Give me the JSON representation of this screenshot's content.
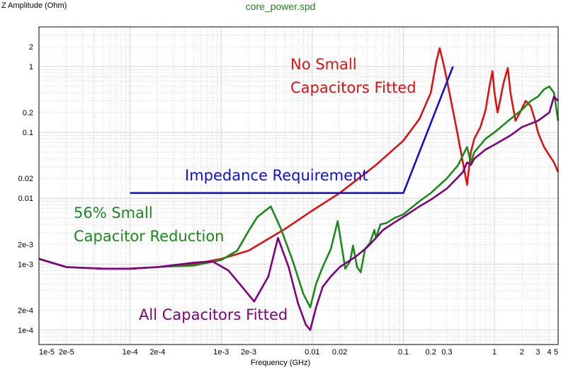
{
  "chart_data": {
    "type": "line",
    "title": "core_power.spd",
    "ylabel": "Z Amplitude (Ohm)",
    "xlabel": "Frequency (GHz)",
    "xscale": "log",
    "yscale": "log",
    "xlim": [
      1e-05,
      5
    ],
    "ylim": [
      6e-05,
      4
    ],
    "grid": true,
    "x_ticks": [
      "1e-5",
      "2e-5",
      "1e-4",
      "2e-4",
      "1e-3",
      "2e-3",
      "0.01",
      "0.02",
      "0.1",
      "0.2",
      "0.3",
      "1",
      "2",
      "3",
      "4",
      "5"
    ],
    "x_tick_values": [
      1e-05,
      2e-05,
      0.0001,
      0.0002,
      0.001,
      0.002,
      0.01,
      0.02,
      0.1,
      0.2,
      0.3,
      1,
      2,
      3,
      4,
      5
    ],
    "y_ticks": [
      "2",
      "1",
      "0.2",
      "0.1",
      "0.02",
      "0.01",
      "2e-3",
      "1e-3",
      "2e-4",
      "1e-4"
    ],
    "y_tick_values": [
      2,
      1,
      0.2,
      0.1,
      0.02,
      0.01,
      0.002,
      0.001,
      0.0002,
      0.0001
    ],
    "annotations": [
      {
        "text": "No Small",
        "color": "#e01010"
      },
      {
        "text": "Capacitors Fitted",
        "color": "#e01010"
      },
      {
        "text": "Impedance Requirement",
        "color": "#1010d0"
      },
      {
        "text": "56% Small",
        "color": "#1a8a1a"
      },
      {
        "text": "Capacitor Reduction",
        "color": "#1a8a1a"
      },
      {
        "text": "All Capacitors Fitted",
        "color": "#800080"
      }
    ],
    "series": [
      {
        "color": "#e01010",
        "x": [
          1e-05,
          2e-05,
          5e-05,
          0.0001,
          0.0002,
          0.0005,
          0.001,
          0.002,
          0.005,
          0.01,
          0.02,
          0.05,
          0.1,
          0.15,
          0.2,
          0.23,
          0.25,
          0.28,
          0.32,
          0.38,
          0.45,
          0.5,
          0.55,
          0.6,
          0.7,
          0.8,
          0.88,
          0.95,
          1.0,
          1.08,
          1.15,
          1.25,
          1.4,
          1.5,
          1.7,
          1.9,
          2.2,
          2.5,
          2.8,
          3.0,
          3.2,
          3.5,
          4.0,
          4.5,
          5.0
        ],
        "y": [
          0.0012,
          0.0009,
          0.00085,
          0.00085,
          0.0009,
          0.001,
          0.0012,
          0.0016,
          0.0034,
          0.0065,
          0.012,
          0.032,
          0.075,
          0.16,
          0.4,
          1.2,
          1.9,
          1.0,
          0.4,
          0.12,
          0.035,
          0.016,
          0.05,
          0.08,
          0.12,
          0.22,
          0.5,
          0.85,
          0.4,
          0.2,
          0.3,
          0.55,
          0.95,
          0.4,
          0.15,
          0.2,
          0.3,
          0.25,
          0.15,
          0.1,
          0.08,
          0.06,
          0.045,
          0.035,
          0.025
        ]
      },
      {
        "color": "#1a8a1a",
        "x": [
          1e-05,
          2e-05,
          5e-05,
          0.0001,
          0.0002,
          0.0005,
          0.001,
          0.0015,
          0.002,
          0.0025,
          0.0035,
          0.0045,
          0.006,
          0.008,
          0.0095,
          0.011,
          0.013,
          0.016,
          0.019,
          0.021,
          0.023,
          0.026,
          0.028,
          0.031,
          0.034,
          0.038,
          0.043,
          0.048,
          0.05,
          0.056,
          0.065,
          0.08,
          0.1,
          0.15,
          0.2,
          0.3,
          0.4,
          0.45,
          0.5,
          0.55,
          0.6,
          0.8,
          1.0,
          1.5,
          2.0,
          2.5,
          3.0,
          3.5,
          4.0,
          4.5,
          5.0
        ],
        "y": [
          0.0012,
          0.0009,
          0.00085,
          0.00085,
          0.0009,
          0.00095,
          0.00115,
          0.0016,
          0.0032,
          0.0052,
          0.0075,
          0.0035,
          0.0012,
          0.00035,
          0.00022,
          0.0005,
          0.0009,
          0.0017,
          0.0045,
          0.0019,
          0.00085,
          0.0011,
          0.0019,
          0.0009,
          0.00075,
          0.0017,
          0.0021,
          0.0033,
          0.0025,
          0.004,
          0.0042,
          0.005,
          0.0057,
          0.009,
          0.012,
          0.02,
          0.032,
          0.045,
          0.06,
          0.035,
          0.05,
          0.08,
          0.1,
          0.16,
          0.22,
          0.3,
          0.35,
          0.45,
          0.5,
          0.4,
          0.15
        ]
      },
      {
        "color": "#800080",
        "x": [
          1e-05,
          2e-05,
          5e-05,
          0.0001,
          0.0002,
          0.0005,
          0.0008,
          0.0012,
          0.0017,
          0.0023,
          0.0033,
          0.0042,
          0.0055,
          0.007,
          0.0085,
          0.0095,
          0.011,
          0.013,
          0.016,
          0.02,
          0.025,
          0.03,
          0.04,
          0.05,
          0.06,
          0.08,
          0.1,
          0.15,
          0.2,
          0.3,
          0.4,
          0.45,
          0.5,
          0.55,
          0.6,
          0.8,
          1.0,
          1.5,
          2.0,
          3.0,
          4.0,
          4.5,
          5.0
        ],
        "y": [
          0.0012,
          0.0009,
          0.00085,
          0.00085,
          0.0009,
          0.00105,
          0.0011,
          0.0008,
          0.00045,
          0.00027,
          0.00065,
          0.0025,
          0.0009,
          0.00025,
          0.00012,
          0.0001,
          0.00022,
          0.00045,
          0.00065,
          0.0009,
          0.0011,
          0.0013,
          0.0018,
          0.0025,
          0.0033,
          0.0043,
          0.0052,
          0.0075,
          0.0095,
          0.014,
          0.021,
          0.025,
          0.035,
          0.032,
          0.04,
          0.055,
          0.065,
          0.09,
          0.12,
          0.15,
          0.2,
          0.35,
          0.3
        ]
      },
      {
        "color": "#1010d0",
        "x": [
          0.0001,
          0.1,
          0.35
        ],
        "y": [
          0.012,
          0.012,
          1.0
        ]
      }
    ]
  }
}
